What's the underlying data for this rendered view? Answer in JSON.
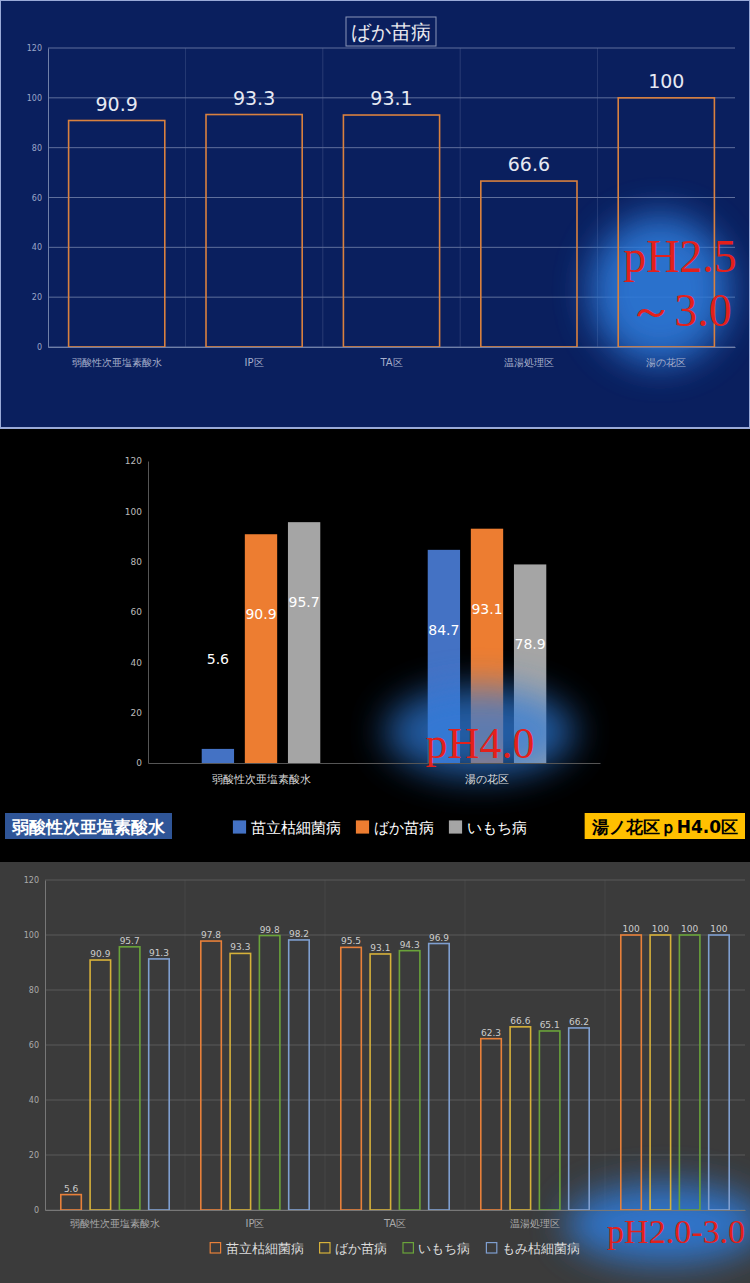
{
  "chart_data": [
    {
      "type": "bar",
      "title": "ばか苗病",
      "categories": [
        "弱酸性次亜塩素酸水",
        "IP区",
        "TA区",
        "温湯処理区",
        "湯の花区"
      ],
      "values": [
        90.9,
        93.3,
        93.1,
        66.6,
        100
      ],
      "color": "#d9813f",
      "ylim": [
        0,
        120
      ],
      "yticks": [
        0,
        20,
        40,
        60,
        80,
        100,
        120
      ],
      "grid": true,
      "data_labels": true,
      "annotations": [
        "pH2.5",
        "～3.0"
      ]
    },
    {
      "type": "bar",
      "categories": [
        "弱酸性次亜塩素酸水",
        "湯の花区"
      ],
      "series": [
        {
          "name": "苗立枯細菌病",
          "color": "#4472c4",
          "values": [
            5.6,
            84.7
          ]
        },
        {
          "name": "ばか苗病",
          "color": "#ed7d31",
          "values": [
            90.9,
            93.1
          ]
        },
        {
          "name": "いもち病",
          "color": "#a5a5a5",
          "values": [
            95.7,
            78.9
          ]
        }
      ],
      "ylim": [
        0,
        120
      ],
      "yticks": [
        0,
        20,
        40,
        60,
        80,
        100,
        120
      ],
      "grid": false,
      "data_labels": true,
      "legend": "bottom",
      "annotations": [
        "pH4.0",
        "弱酸性次亜塩素酸水",
        "湯ノ花区ｐH4.0区"
      ]
    },
    {
      "type": "bar",
      "categories": [
        "弱酸性次亜塩素酸水",
        "IP区",
        "TA区",
        "温湯処理区",
        null
      ],
      "series": [
        {
          "name": "苗立枯細菌病",
          "color": "#e8803a",
          "values": [
            5.6,
            97.8,
            95.5,
            62.3,
            100
          ]
        },
        {
          "name": "ばか苗病",
          "color": "#d6b13a",
          "values": [
            90.9,
            93.3,
            93.1,
            66.6,
            100
          ]
        },
        {
          "name": "いもち病",
          "color": "#6aa33a",
          "values": [
            95.7,
            99.8,
            94.3,
            65.1,
            100
          ]
        },
        {
          "name": "もみ枯細菌病",
          "color": "#7f9fd0",
          "values": [
            91.3,
            98.2,
            96.9,
            66.2,
            100
          ]
        }
      ],
      "ylim": [
        0,
        120
      ],
      "yticks": [
        0,
        20,
        40,
        60,
        80,
        100,
        120
      ],
      "grid": true,
      "data_labels": true,
      "legend": "bottom",
      "annotations": [
        "pH2.0-3.0"
      ]
    }
  ]
}
